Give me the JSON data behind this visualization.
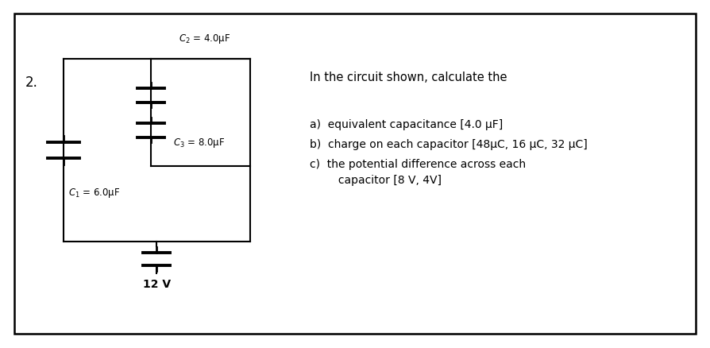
{
  "bg_color": "#ffffff",
  "border_color": "#000000",
  "problem_number": "2.",
  "c1_label": "$C_1$ = 6.0μF",
  "c2_label": "$C_2$ = 4.0μF",
  "c3_label": "$C_3$ = 8.0μF",
  "battery_label": "12 V",
  "text_line0": "In the circuit shown, calculate the",
  "text_line1": "a)  equivalent capacitance [4.0 μF]",
  "text_line2": "b)  charge on each capacitor [48μC, 16 μC, 32 μC]",
  "text_line3": "c)  the potential difference across each",
  "text_line4": "     capacitor [8 V, 4V]",
  "font_size_labels": 8.5,
  "font_size_text": 10.5,
  "font_size_number": 12,
  "line_width": 1.5
}
